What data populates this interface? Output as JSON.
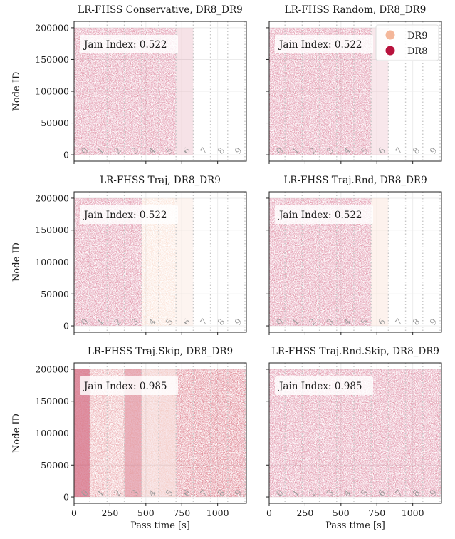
{
  "figure": {
    "xlabel": "Pass time [s]",
    "ylabel": "Node ID"
  },
  "legend": [
    {
      "label": "DR9",
      "color": "#f4b79a"
    },
    {
      "label": "DR8",
      "color": "#b8123d"
    }
  ],
  "chart_data": [
    {
      "type": "scatter",
      "title": "LR-FHSS Conservative, DR8_DR9",
      "annotation": "Jain Index: 0.522",
      "xlabel": "",
      "ylabel": "Node ID",
      "xlim": [
        0,
        1200
      ],
      "ylim": [
        -10000,
        210000
      ],
      "xticks": [
        0,
        250,
        500,
        750,
        1000
      ],
      "yticks": [
        0,
        50000,
        100000,
        150000,
        200000
      ],
      "grid": true,
      "pass_boundaries": [
        0,
        110,
        230,
        350,
        470,
        590,
        710,
        830,
        950,
        1070,
        1190
      ],
      "pass_labels": [
        "0",
        "1",
        "2",
        "3",
        "4",
        "5",
        "6",
        "7",
        "8",
        "9"
      ],
      "series": [
        {
          "name": "DR8",
          "segments": [
            [
              0,
              710,
              0.92
            ]
          ]
        },
        {
          "name": "DR8",
          "segments": [
            [
              710,
              830,
              0.12
            ]
          ]
        }
      ]
    },
    {
      "type": "scatter",
      "title": "LR-FHSS Random, DR8_DR9",
      "annotation": "Jain Index: 0.522",
      "xlabel": "",
      "ylabel": "",
      "xlim": [
        0,
        1200
      ],
      "ylim": [
        -10000,
        210000
      ],
      "xticks": [
        0,
        250,
        500,
        750,
        1000
      ],
      "yticks": [
        0,
        50000,
        100000,
        150000,
        200000
      ],
      "grid": true,
      "pass_boundaries": [
        0,
        110,
        230,
        350,
        470,
        590,
        710,
        830,
        950,
        1070,
        1190
      ],
      "pass_labels": [
        "0",
        "1",
        "2",
        "3",
        "4",
        "5",
        "6",
        "7",
        "8",
        "9"
      ],
      "series": [
        {
          "name": "DR8",
          "segments": [
            [
              0,
              710,
              0.92
            ]
          ]
        },
        {
          "name": "DR8",
          "segments": [
            [
              710,
              830,
              0.1
            ]
          ]
        }
      ],
      "show_legend": true
    },
    {
      "type": "scatter",
      "title": "LR-FHSS Traj, DR8_DR9",
      "annotation": "Jain Index: 0.522",
      "xlabel": "",
      "ylabel": "Node ID",
      "xlim": [
        0,
        1200
      ],
      "ylim": [
        -10000,
        210000
      ],
      "xticks": [
        0,
        250,
        500,
        750,
        1000
      ],
      "yticks": [
        0,
        50000,
        100000,
        150000,
        200000
      ],
      "grid": true,
      "pass_boundaries": [
        0,
        110,
        230,
        350,
        470,
        590,
        710,
        830,
        950,
        1070,
        1190
      ],
      "pass_labels": [
        "0",
        "1",
        "2",
        "3",
        "4",
        "5",
        "6",
        "7",
        "8",
        "9"
      ],
      "series": [
        {
          "name": "DR8",
          "segments": [
            [
              0,
              470,
              0.92
            ]
          ]
        },
        {
          "name": "DR9",
          "segments": [
            [
              470,
              710,
              0.85
            ]
          ]
        },
        {
          "name": "DR9",
          "segments": [
            [
              710,
              830,
              0.15
            ]
          ]
        }
      ]
    },
    {
      "type": "scatter",
      "title": "LR-FHSS Traj.Rnd, DR8_DR9",
      "annotation": "Jain Index: 0.522",
      "xlabel": "",
      "ylabel": "",
      "xlim": [
        0,
        1200
      ],
      "ylim": [
        -10000,
        210000
      ],
      "xticks": [
        0,
        250,
        500,
        750,
        1000
      ],
      "yticks": [
        0,
        50000,
        100000,
        150000,
        200000
      ],
      "grid": true,
      "pass_boundaries": [
        0,
        110,
        230,
        350,
        470,
        590,
        710,
        830,
        950,
        1070,
        1190
      ],
      "pass_labels": [
        "0",
        "1",
        "2",
        "3",
        "4",
        "5",
        "6",
        "7",
        "8",
        "9"
      ],
      "series": [
        {
          "name": "DR8",
          "segments": [
            [
              0,
              710,
              0.92
            ]
          ]
        },
        {
          "name": "DR9",
          "segments": [
            [
              710,
              830,
              0.18
            ]
          ]
        }
      ]
    },
    {
      "type": "scatter",
      "title": "LR-FHSS Traj.Skip, DR8_DR9",
      "annotation": "Jain Index: 0.985",
      "xlabel": "Pass time [s]",
      "ylabel": "Node ID",
      "xlim": [
        0,
        1200
      ],
      "ylim": [
        -10000,
        210000
      ],
      "xticks": [
        0,
        250,
        500,
        750,
        1000
      ],
      "yticks": [
        0,
        50000,
        100000,
        150000,
        200000
      ],
      "grid": true,
      "pass_boundaries": [
        0,
        110,
        230,
        350,
        470,
        590,
        710,
        830,
        950,
        1070,
        1190
      ],
      "pass_labels": [
        "0",
        "1",
        "2",
        "3",
        "4",
        "5",
        "6",
        "7",
        "8",
        "9"
      ],
      "series": [
        {
          "name": "DR9",
          "segments": [
            [
              0,
              1200,
              0.85
            ]
          ]
        },
        {
          "name": "DR8",
          "segments": [
            [
              0,
              110,
              0.45
            ],
            [
              110,
              230,
              0.55
            ],
            [
              230,
              350,
              0.5
            ],
            [
              350,
              470,
              0.3
            ],
            [
              470,
              590,
              0.08
            ],
            [
              590,
              710,
              0.1
            ],
            [
              710,
              830,
              0.85
            ],
            [
              830,
              950,
              0.9
            ],
            [
              950,
              1070,
              0.9
            ],
            [
              1070,
              1200,
              0.9
            ]
          ]
        }
      ]
    },
    {
      "type": "scatter",
      "title": "LR-FHSS Traj.Rnd.Skip, DR8_DR9",
      "annotation": "Jain Index: 0.985",
      "xlabel": "Pass time [s]",
      "ylabel": "",
      "xlim": [
        0,
        1200
      ],
      "ylim": [
        -10000,
        210000
      ],
      "xticks": [
        0,
        250,
        500,
        750,
        1000
      ],
      "yticks": [
        0,
        50000,
        100000,
        150000,
        200000
      ],
      "grid": true,
      "pass_boundaries": [
        0,
        110,
        230,
        350,
        470,
        590,
        710,
        830,
        950,
        1070,
        1190
      ],
      "pass_labels": [
        "0",
        "1",
        "2",
        "3",
        "4",
        "5",
        "6",
        "7",
        "8",
        "9"
      ],
      "series": [
        {
          "name": "DR8",
          "segments": [
            [
              0,
              1200,
              0.92
            ]
          ]
        }
      ]
    }
  ]
}
